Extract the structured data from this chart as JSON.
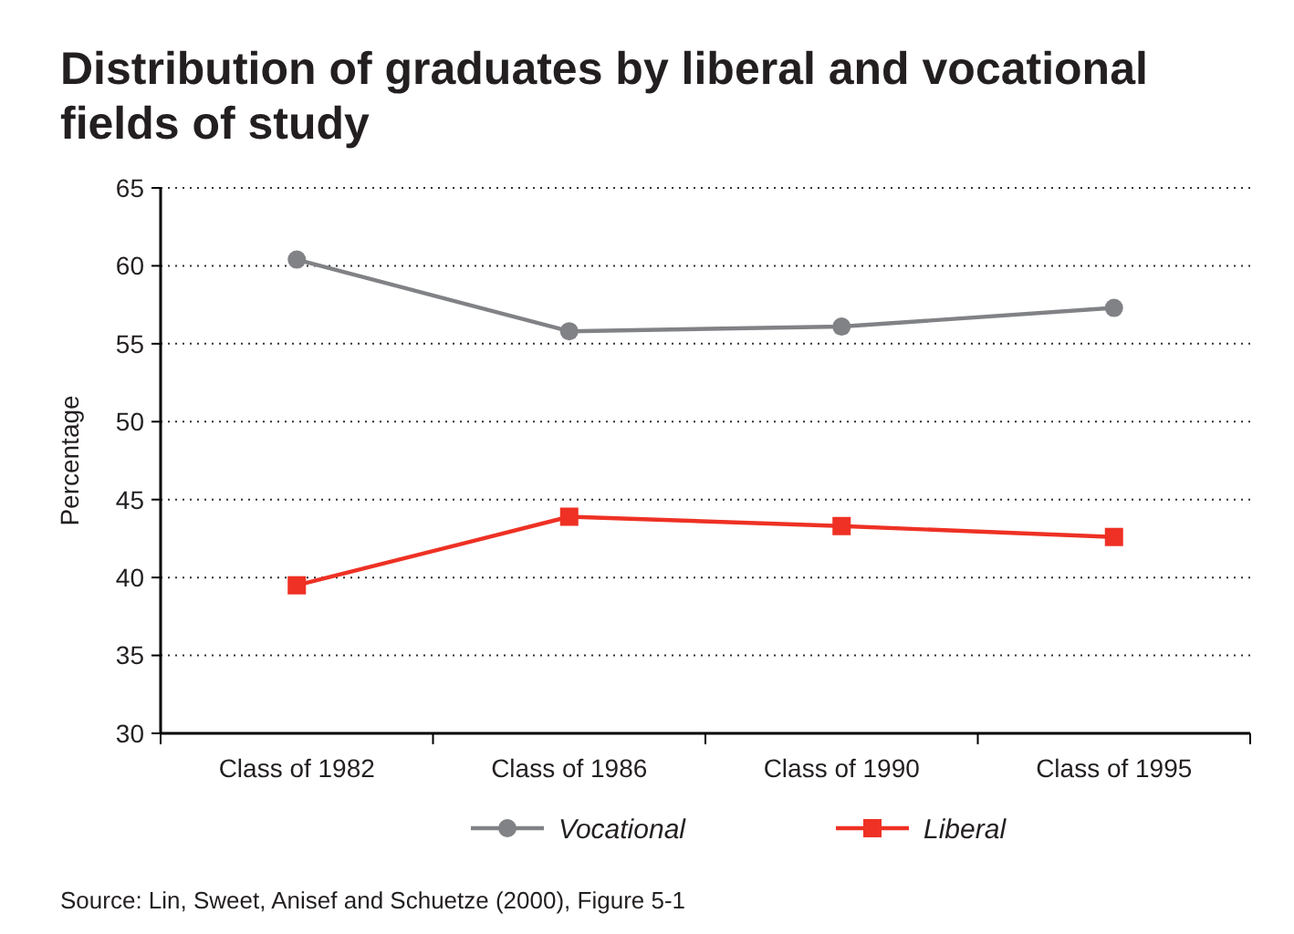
{
  "chart_data": {
    "type": "line",
    "title": "Distribution of graduates by liberal and vocational fields of study",
    "ylabel": "Percentage",
    "categories": [
      "Class of 1982",
      "Class of 1986",
      "Class of 1990",
      "Class of 1995"
    ],
    "series": [
      {
        "name": "Vocational",
        "color": "#808285",
        "marker": "circle",
        "values": [
          60.4,
          55.8,
          56.1,
          57.3
        ]
      },
      {
        "name": "Liberal",
        "color": "#ee3124",
        "marker": "square",
        "values": [
          39.5,
          43.9,
          43.3,
          42.6
        ]
      }
    ],
    "ylim": [
      30,
      65
    ],
    "yticks": [
      30,
      35,
      40,
      45,
      50,
      55,
      60,
      65
    ],
    "grid": "y",
    "legend": "bottom",
    "annotations": [
      "Source: Lin, Sweet, Anisef and Schuetze (2000), Figure 5-1"
    ]
  }
}
